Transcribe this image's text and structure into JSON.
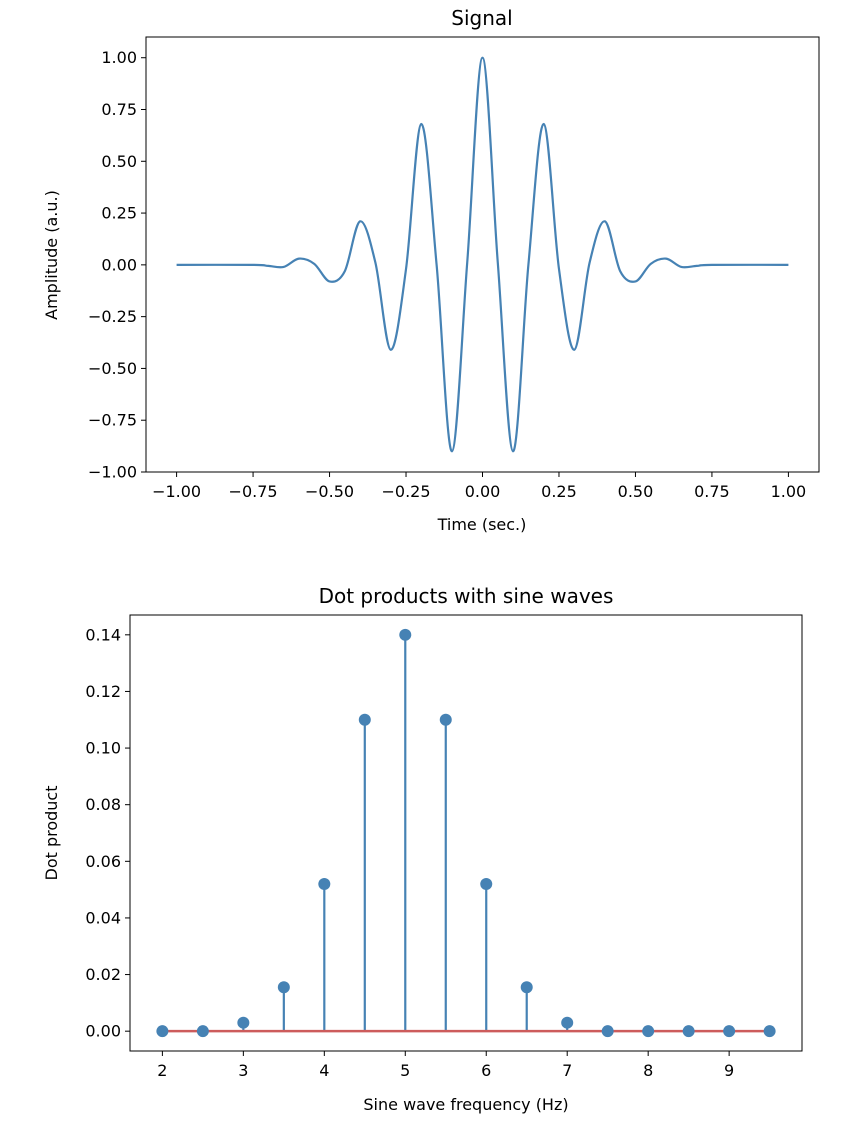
{
  "chart_data": [
    {
      "type": "line",
      "title": "Signal",
      "xlabel": "Time (sec.)",
      "ylabel": "Amplitude (a.u.)",
      "xlim": [
        -1.1,
        1.1
      ],
      "ylim": [
        -1.0,
        1.1
      ],
      "xticks": [
        -1.0,
        -0.75,
        -0.5,
        -0.25,
        0.0,
        0.25,
        0.5,
        0.75,
        1.0
      ],
      "xtick_labels": [
        "−1.00",
        "−0.75",
        "−0.50",
        "−0.25",
        "0.00",
        "0.25",
        "0.50",
        "0.75",
        "1.00"
      ],
      "yticks": [
        -1.0,
        -0.75,
        -0.5,
        -0.25,
        0.0,
        0.25,
        0.5,
        0.75,
        1.0
      ],
      "ytick_labels": [
        "−1.00",
        "−0.75",
        "−0.50",
        "−0.25",
        "0.00",
        "0.25",
        "0.50",
        "0.75",
        "1.00"
      ],
      "grid": false,
      "series": [
        {
          "color": "#4682b4",
          "x": [
            -1.0,
            -0.75,
            -0.7,
            -0.65,
            -0.6,
            -0.55,
            -0.5,
            -0.45,
            -0.4,
            -0.35,
            -0.3,
            -0.25,
            -0.2,
            -0.15,
            -0.1,
            -0.05,
            0.0,
            0.05,
            0.1,
            0.15,
            0.2,
            0.25,
            0.3,
            0.35,
            0.4,
            0.45,
            0.5,
            0.55,
            0.6,
            0.65,
            0.7,
            0.75,
            1.0
          ],
          "y": [
            0.0,
            0.0,
            -0.005,
            -0.01,
            0.03,
            0.005,
            -0.08,
            -0.03,
            0.21,
            0.01,
            -0.41,
            -0.02,
            0.68,
            0.0,
            -0.9,
            0.01,
            1.0,
            0.01,
            -0.9,
            0.0,
            0.68,
            -0.02,
            -0.41,
            0.01,
            0.21,
            -0.03,
            -0.08,
            0.005,
            0.03,
            -0.01,
            -0.005,
            0.0,
            0.0
          ]
        }
      ]
    },
    {
      "type": "stem",
      "title": "Dot products with sine waves",
      "xlabel": "Sine wave frequency (Hz)",
      "ylabel": "Dot product",
      "xlim": [
        1.6,
        9.9
      ],
      "ylim": [
        -0.007,
        0.147
      ],
      "xticks": [
        2,
        3,
        4,
        5,
        6,
        7,
        8,
        9
      ],
      "xtick_labels": [
        "2",
        "3",
        "4",
        "5",
        "6",
        "7",
        "8",
        "9"
      ],
      "yticks": [
        0.0,
        0.02,
        0.04,
        0.06,
        0.08,
        0.1,
        0.12,
        0.14
      ],
      "ytick_labels": [
        "0.00",
        "0.02",
        "0.04",
        "0.06",
        "0.08",
        "0.10",
        "0.12",
        "0.14"
      ],
      "grid": false,
      "stem_color": "#4682b4",
      "baseline_color": "#cd5c5c",
      "x": [
        2.0,
        2.5,
        3.0,
        3.5,
        4.0,
        4.5,
        5.0,
        5.5,
        6.0,
        6.5,
        7.0,
        7.5,
        8.0,
        8.5,
        9.0,
        9.5
      ],
      "y": [
        0.0,
        0.0,
        0.003,
        0.0155,
        0.052,
        0.11,
        0.14,
        0.11,
        0.052,
        0.0155,
        0.003,
        0.0,
        0.0,
        0.0,
        0.0,
        0.0
      ]
    }
  ]
}
